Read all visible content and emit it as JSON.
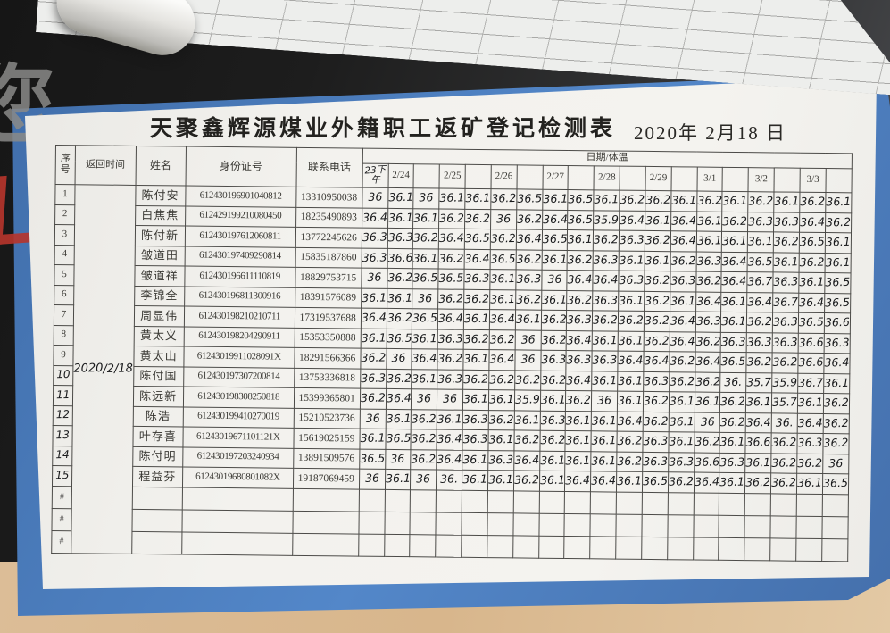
{
  "photo": {
    "cover_character": "您",
    "desk_color": "#d9b992",
    "book_cover_color": "#4e7fbe",
    "background_color": "#1d1d1d"
  },
  "document": {
    "title": "天聚鑫辉源煤业外籍职工返矿登记检测表",
    "date": "2020年 2月18 日",
    "table": {
      "headers": {
        "index": "序号",
        "return_time": "返回时间",
        "name": "姓名",
        "id_number": "身份证号",
        "phone": "联系电话",
        "date_temp": "日期/体温",
        "date_cols": [
          "23下午",
          "2/24",
          "",
          "2/25",
          "",
          "2/26",
          "",
          "2/27",
          "",
          "2/28",
          "",
          "2/29",
          "",
          "3/1",
          "",
          "3/2",
          "",
          "3/3",
          ""
        ]
      },
      "return_time_value": [
        "2020",
        "/2/18"
      ],
      "handwritten_index_from": 10,
      "empty_row_marker": "#",
      "empty_rows": 3,
      "rows": [
        {
          "no": "1",
          "name": "陈付安",
          "id": "612430196901040812",
          "phone": "13310950038",
          "temps": [
            "36",
            "36.1",
            "36",
            "36.1",
            "36.1",
            "36.2",
            "36.5",
            "36.1",
            "36.5",
            "36.1",
            "36.2",
            "36.2",
            "36.1",
            "36.2",
            "36.1",
            "36.2",
            "36.1",
            "36.2",
            "36.1"
          ]
        },
        {
          "no": "2",
          "name": "白焦焦",
          "id": "612429199210080450",
          "phone": "18235490893",
          "temps": [
            "36.4",
            "36.1",
            "36.1",
            "36.2",
            "36.2",
            "36",
            "36.2",
            "36.4",
            "36.5",
            "35.9",
            "36.4",
            "36.1",
            "36.4",
            "36.1",
            "36.2",
            "36.3",
            "36.3",
            "36.4",
            "36.2"
          ]
        },
        {
          "no": "3",
          "name": "陈付新",
          "id": "612430197612060811",
          "phone": "13772245626",
          "temps": [
            "36.3",
            "36.3",
            "36.2",
            "36.4",
            "36.5",
            "36.2",
            "36.4",
            "36.5",
            "36.1",
            "36.2",
            "36.3",
            "36.2",
            "36.4",
            "36.1",
            "36.1",
            "36.1",
            "36.2",
            "36.5",
            "36.1"
          ]
        },
        {
          "no": "4",
          "name": "皱道田",
          "id": "612430197409290814",
          "phone": "15835187860",
          "temps": [
            "36.3",
            "36.6",
            "36.1",
            "36.2",
            "36.4",
            "36.5",
            "36.2",
            "36.1",
            "36.2",
            "36.3",
            "36.1",
            "36.1",
            "36.2",
            "36.3",
            "36.4",
            "36.5",
            "36.1",
            "36.2",
            "36.1"
          ]
        },
        {
          "no": "5",
          "name": "皱道祥",
          "id": "612430196611110819",
          "phone": "18829753715",
          "temps": [
            "36",
            "36.2",
            "36.5",
            "36.5",
            "36.3",
            "36.1",
            "36.3",
            "36",
            "36.4",
            "36.4",
            "36.3",
            "36.2",
            "36.3",
            "36.2",
            "36.4",
            "36.7",
            "36.3",
            "36.1",
            "36.5"
          ]
        },
        {
          "no": "6",
          "name": "李锦全",
          "id": "612430196811300916",
          "phone": "18391576089",
          "temps": [
            "36.1",
            "36.1",
            "36",
            "36.2",
            "36.2",
            "36.1",
            "36.2",
            "36.1",
            "36.2",
            "36.3",
            "36.1",
            "36.2",
            "36.1",
            "36.4",
            "36.1",
            "36.4",
            "36.7",
            "36.4",
            "36.5"
          ]
        },
        {
          "no": "7",
          "name": "周显伟",
          "id": "612430198210210711",
          "phone": "17319537688",
          "temps": [
            "36.4",
            "36.2",
            "36.5",
            "36.4",
            "36.1",
            "36.4",
            "36.1",
            "36.2",
            "36.3",
            "36.2",
            "36.2",
            "36.2",
            "36.4",
            "36.3",
            "36.1",
            "36.2",
            "36.3",
            "36.5",
            "36.6"
          ]
        },
        {
          "no": "8",
          "name": "黄太义",
          "id": "612430198204290911",
          "phone": "15353350888",
          "temps": [
            "36.1",
            "36.5",
            "36.1",
            "36.3",
            "36.2",
            "36.2",
            "36",
            "36.2",
            "36.4",
            "36.1",
            "36.1",
            "36.2",
            "36.4",
            "36.2",
            "36.3",
            "36.3",
            "36.3",
            "36.6",
            "36.3"
          ]
        },
        {
          "no": "9",
          "name": "黄太山",
          "id": "61243019911028091X",
          "phone": "18291566366",
          "temps": [
            "36.2",
            "36",
            "36.4",
            "36.2",
            "36.1",
            "36.4",
            "36",
            "36.3",
            "36.3",
            "36.3",
            "36.4",
            "36.4",
            "36.2",
            "36.4",
            "36.5",
            "36.2",
            "36.2",
            "36.6",
            "36.4"
          ]
        },
        {
          "no": "10",
          "name": "陈付国",
          "id": "612430197307200814",
          "phone": "13753336818",
          "temps": [
            "36.3",
            "36.2",
            "36.1",
            "36.3",
            "36.2",
            "36.2",
            "36.2",
            "36.2",
            "36.4",
            "36.1",
            "36.1",
            "36.3",
            "36.2",
            "36.2",
            "36.",
            "35.7",
            "35.9",
            "36.7",
            "36.1"
          ]
        },
        {
          "no": "11",
          "name": "陈远新",
          "id": "612430198308250818",
          "phone": "15399365801",
          "temps": [
            "36.2",
            "36.4",
            "36",
            "36",
            "36.1",
            "36.1",
            "35.9",
            "36.1",
            "36.2",
            "36",
            "36.1",
            "36.2",
            "36.1",
            "36.1",
            "36.2",
            "36.1",
            "35.7",
            "36.1",
            "36.2"
          ]
        },
        {
          "no": "12",
          "name": "陈浩",
          "id": "612430199410270019",
          "phone": "15210523736",
          "temps": [
            "36",
            "36.1",
            "36.2",
            "36.1",
            "36.3",
            "36.2",
            "36.1",
            "36.3",
            "36.1",
            "36.1",
            "36.4",
            "36.2",
            "36.1",
            "36",
            "36.2",
            "36.4",
            "36.",
            "36.4",
            "36.2"
          ]
        },
        {
          "no": "13",
          "name": "叶存喜",
          "id": "61243019671101121X",
          "phone": "15619025159",
          "temps": [
            "36.1",
            "36.5",
            "36.2",
            "36.4",
            "36.3",
            "36.1",
            "36.2",
            "36.2",
            "36.1",
            "36.1",
            "36.2",
            "36.3",
            "36.1",
            "36.2",
            "36.1",
            "36.6",
            "36.2",
            "36.3",
            "36.2"
          ]
        },
        {
          "no": "14",
          "name": "陈付明",
          "id": "612430197203240934",
          "phone": "13891509576",
          "temps": [
            "36.5",
            "36",
            "36.2",
            "36.4",
            "36.1",
            "36.3",
            "36.4",
            "36.1",
            "36.1",
            "36.1",
            "36.2",
            "36.3",
            "36.3",
            "36.6",
            "36.3",
            "36.1",
            "36.2",
            "36.2",
            "36"
          ]
        },
        {
          "no": "15",
          "name": "程益芬",
          "id": "61243019680801082X",
          "phone": "19187069459",
          "temps": [
            "36",
            "36.1",
            "36",
            "36.",
            "36.1",
            "36.1",
            "36.2",
            "36.1",
            "36.4",
            "36.4",
            "36.1",
            "36.5",
            "36.2",
            "36.4",
            "36.1",
            "36.2",
            "36.2",
            "36.1",
            "36.5"
          ]
        }
      ]
    }
  }
}
